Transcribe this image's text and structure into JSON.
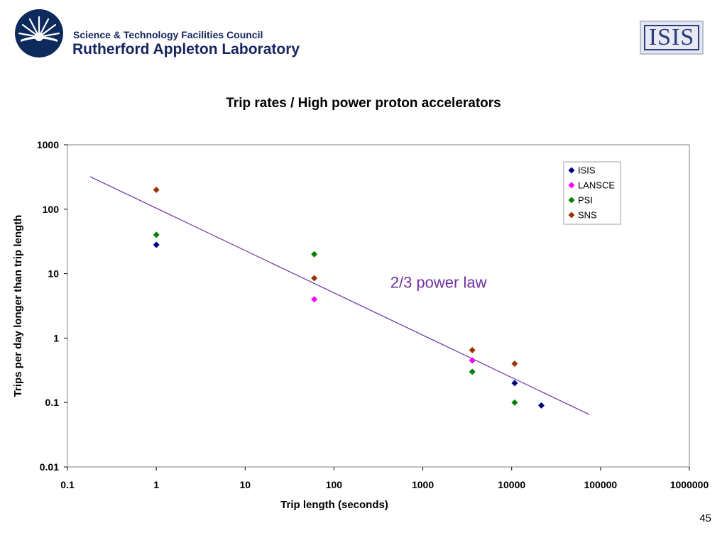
{
  "header": {
    "org_line1": "Science & Technology Facilities Council",
    "org_line2": "Rutherford Appleton Laboratory",
    "isis_logo": "ISIS"
  },
  "page_number": "45",
  "colors": {
    "ISIS": "#000080",
    "LANSCE": "#ff00ff",
    "PSI": "#008000",
    "SNS": "#993300",
    "fit_line": "#7030a0",
    "annotation": "#7030a0"
  },
  "chart_data": {
    "type": "scatter",
    "title": "Trip rates / High power proton accelerators",
    "xlabel": "Trip length (seconds)",
    "ylabel": "Trips per day longer than trip length",
    "x_scale": "log",
    "y_scale": "log",
    "xlim": [
      0.1,
      1000000
    ],
    "ylim": [
      0.01,
      1000
    ],
    "x_ticks": [
      "0.1",
      "1",
      "10",
      "100",
      "1000",
      "10000",
      "100000",
      "1000000"
    ],
    "y_ticks": [
      "0.01",
      "0.1",
      "1",
      "10",
      "100",
      "1000"
    ],
    "grid": false,
    "legend_position": "top-right",
    "series": [
      {
        "name": "ISIS",
        "points": [
          [
            1,
            28
          ],
          [
            3600,
            0.45
          ],
          [
            10800,
            0.2
          ],
          [
            21600,
            0.09
          ]
        ]
      },
      {
        "name": "LANSCE",
        "points": [
          [
            60,
            4
          ],
          [
            3600,
            0.45
          ]
        ]
      },
      {
        "name": "PSI",
        "points": [
          [
            1,
            40
          ],
          [
            60,
            20
          ],
          [
            3600,
            0.3
          ],
          [
            10800,
            0.1
          ]
        ]
      },
      {
        "name": "SNS",
        "points": [
          [
            1,
            200
          ],
          [
            60,
            8.5
          ],
          [
            3600,
            0.65
          ],
          [
            10800,
            0.4
          ]
        ]
      }
    ],
    "fit_line": {
      "points": [
        [
          0.18,
          320
        ],
        [
          75000,
          0.065
        ]
      ]
    },
    "annotation": {
      "text": "2/3 power law",
      "x": 1500,
      "y": 6
    }
  }
}
